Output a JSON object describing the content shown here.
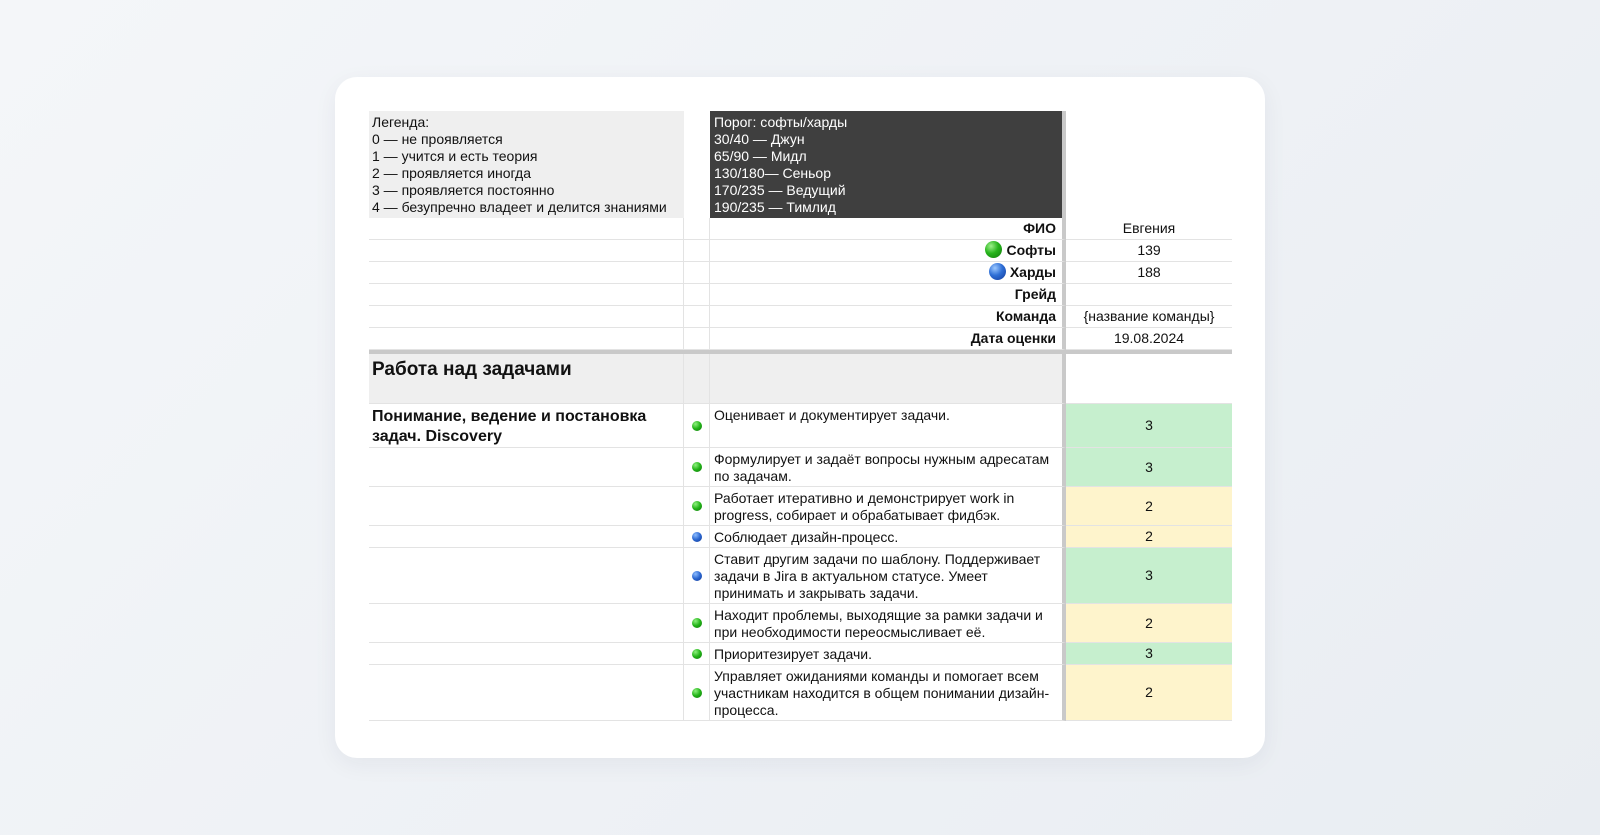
{
  "legend": {
    "text": "Легенда:\n0 — не проявляется\n1 — учится и есть теория\n2 — проявляется иногда\n3 — проявляется постоянно\n4 — безупречно владеет и делится знаниями"
  },
  "thresholds": {
    "text": "Порог: софты/харды\n30/40 — Джун\n65/90 — Мидл\n130/180— Сеньор\n170/235 — Ведущий\n190/235 — Тимлид"
  },
  "info": {
    "fio_label": "ФИО",
    "fio_value": "Евгения",
    "softs_label": "Софты",
    "softs_value": "139",
    "hards_label": "Харды",
    "hards_value": "188",
    "grade_label": "Грейд",
    "grade_value": "",
    "team_label": "Команда",
    "team_value": "{название команды}",
    "date_label": "Дата оценки",
    "date_value": "19.08.2024"
  },
  "colors": {
    "softs": "#22b317",
    "hards": "#2a66d0",
    "score3_bg": "#c6efce",
    "score2_bg": "#fef4cc",
    "threshold_bg": "#3f3f3f"
  },
  "section": {
    "title": "Работа над задачами",
    "group_title": "Понимание, ведение и постановка задач. Discovery",
    "skills": [
      {
        "type": "green",
        "text": "Оценивает и документирует задачи.",
        "score": "3"
      },
      {
        "type": "green",
        "text": "Формулирует и задаёт вопросы нужным адресатам по задачам.",
        "score": "3"
      },
      {
        "type": "green",
        "text": "Работает итеративно и демонстрирует work in progress, собирает и обрабатывает фидбэк.",
        "score": "2"
      },
      {
        "type": "blue",
        "text": "Соблюдает дизайн-процесс.",
        "score": "2"
      },
      {
        "type": "blue",
        "text": "Ставит другим задачи по шаблону. Поддерживает задачи в Jira в актуальном статусе. Умеет принимать и закрывать задачи.",
        "score": "3"
      },
      {
        "type": "green",
        "text": "Находит проблемы, выходящие за рамки задачи и при необходимости переосмысливает её.",
        "score": "2"
      },
      {
        "type": "green",
        "text": "Приоритезирует задачи.",
        "score": "3"
      },
      {
        "type": "green",
        "text": "Управляет ожиданиями команды и помогает всем участникам находится в общем понимании дизайн-процесса.",
        "score": "2"
      }
    ]
  }
}
